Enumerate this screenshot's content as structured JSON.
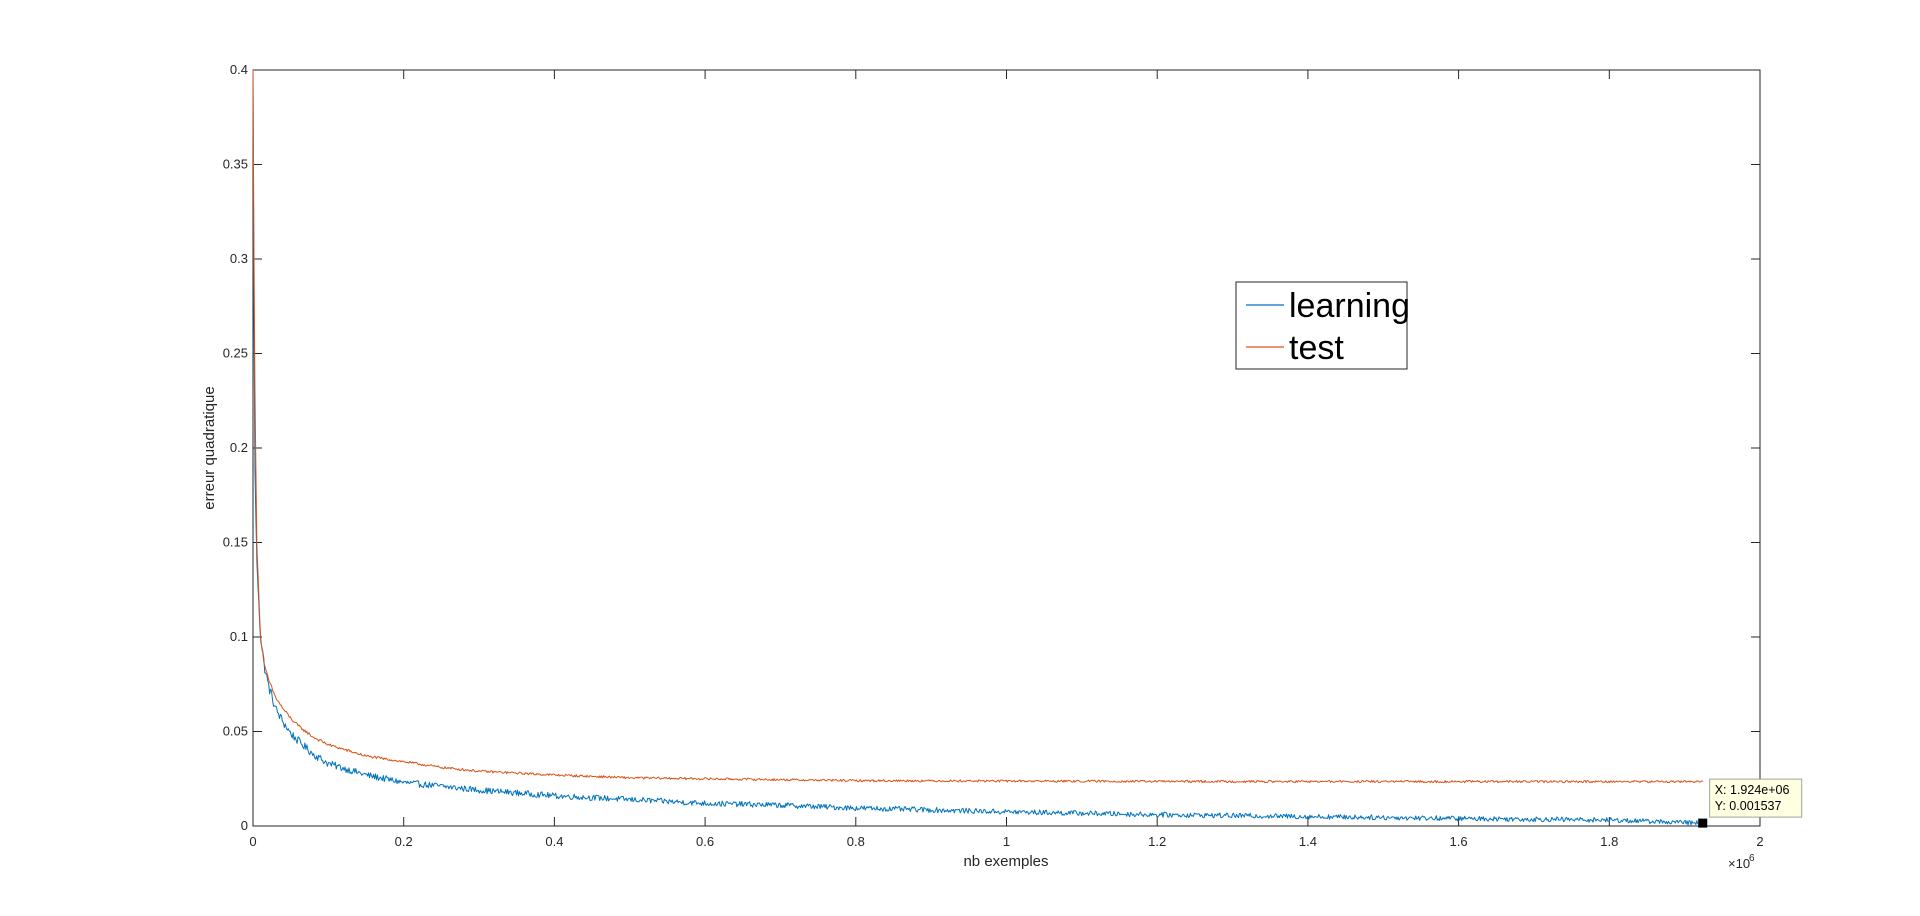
{
  "chart_data": {
    "type": "line",
    "xlabel": "nb exemples",
    "ylabel": "erreur quadratique",
    "xlim": [
      0,
      2000000
    ],
    "ylim": [
      0,
      0.4
    ],
    "x_exponent_label": "×10",
    "x_exponent_power": "6",
    "x_ticks": [
      0,
      200000,
      400000,
      600000,
      800000,
      1000000,
      1200000,
      1400000,
      1600000,
      1800000,
      2000000
    ],
    "x_tick_labels": [
      "0",
      "0.2",
      "0.4",
      "0.6",
      "0.8",
      "1",
      "1.2",
      "1.4",
      "1.6",
      "1.8",
      "2"
    ],
    "y_ticks": [
      0,
      0.05,
      0.1,
      0.15,
      0.2,
      0.25,
      0.3,
      0.35,
      0.4
    ],
    "y_tick_labels": [
      "0",
      "0.05",
      "0.1",
      "0.15",
      "0.2",
      "0.25",
      "0.3",
      "0.35",
      "0.4"
    ],
    "grid": false,
    "legend_position": "upper-right-center",
    "series": [
      {
        "name": "learning",
        "color": "#0072BD",
        "noise": 0.0035,
        "x": [
          0,
          2000,
          5000,
          10000,
          15000,
          20000,
          30000,
          40000,
          50000,
          60000,
          80000,
          100000,
          150000,
          200000,
          250000,
          300000,
          400000,
          500000,
          600000,
          700000,
          800000,
          900000,
          1000000,
          1200000,
          1400000,
          1600000,
          1800000,
          1924000
        ],
        "y": [
          0.4,
          0.2,
          0.14,
          0.1,
          0.085,
          0.075,
          0.062,
          0.055,
          0.049,
          0.045,
          0.038,
          0.033,
          0.027,
          0.023,
          0.021,
          0.019,
          0.016,
          0.014,
          0.012,
          0.011,
          0.0095,
          0.0085,
          0.0075,
          0.006,
          0.005,
          0.004,
          0.0032,
          0.001537
        ]
      },
      {
        "name": "test",
        "color": "#D95319",
        "noise": 0.0012,
        "x": [
          0,
          2000,
          5000,
          10000,
          15000,
          20000,
          30000,
          40000,
          50000,
          60000,
          80000,
          100000,
          150000,
          200000,
          250000,
          300000,
          400000,
          500000,
          600000,
          700000,
          800000,
          1000000,
          1200000,
          1400000,
          1600000,
          1800000,
          1924000
        ],
        "y": [
          0.4,
          0.25,
          0.15,
          0.1,
          0.085,
          0.078,
          0.068,
          0.062,
          0.057,
          0.053,
          0.047,
          0.043,
          0.037,
          0.034,
          0.031,
          0.029,
          0.027,
          0.0255,
          0.025,
          0.0245,
          0.024,
          0.0238,
          0.0236,
          0.0235,
          0.0235,
          0.0235,
          0.0235
        ]
      }
    ],
    "datatip": {
      "x": 1924000,
      "y": 0.001537,
      "x_text": "X: 1.924e+06",
      "y_text": "Y: 0.001537"
    }
  }
}
